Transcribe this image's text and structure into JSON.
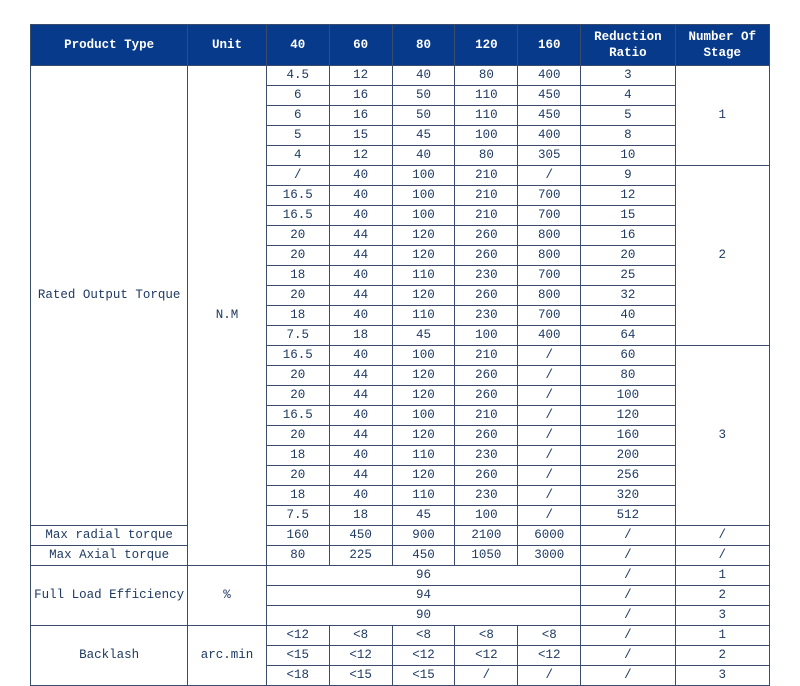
{
  "colors": {
    "header_bg": "#083a8b",
    "header_fg": "#ffffff",
    "border": "#3b4b6b",
    "text": "#1f3a63",
    "bg": "#ffffff"
  },
  "col_widths_pct": [
    20,
    10,
    8,
    8,
    8,
    8,
    8,
    12,
    12
  ],
  "headers": {
    "product_type": "Product Type",
    "unit": "Unit",
    "c40": "40",
    "c60": "60",
    "c80": "80",
    "c120": "120",
    "c160": "160",
    "reduction_ratio": "Reduction\nRatio",
    "num_stage": "Number Of\nStage"
  },
  "sections": {
    "rated_output": {
      "label": "Rated Output Torque",
      "unit": "N.M",
      "stages": [
        {
          "stage": "1",
          "rows": [
            {
              "c40": "4.5",
              "c60": "12",
              "c80": "40",
              "c120": "80",
              "c160": "400",
              "rr": "3"
            },
            {
              "c40": "6",
              "c60": "16",
              "c80": "50",
              "c120": "110",
              "c160": "450",
              "rr": "4"
            },
            {
              "c40": "6",
              "c60": "16",
              "c80": "50",
              "c120": "110",
              "c160": "450",
              "rr": "5"
            },
            {
              "c40": "5",
              "c60": "15",
              "c80": "45",
              "c120": "100",
              "c160": "400",
              "rr": "8"
            },
            {
              "c40": "4",
              "c60": "12",
              "c80": "40",
              "c120": "80",
              "c160": "305",
              "rr": "10"
            }
          ]
        },
        {
          "stage": "2",
          "rows": [
            {
              "c40": "/",
              "c60": "40",
              "c80": "100",
              "c120": "210",
              "c160": "/",
              "rr": "9"
            },
            {
              "c40": "16.5",
              "c60": "40",
              "c80": "100",
              "c120": "210",
              "c160": "700",
              "rr": "12"
            },
            {
              "c40": "16.5",
              "c60": "40",
              "c80": "100",
              "c120": "210",
              "c160": "700",
              "rr": "15"
            },
            {
              "c40": "20",
              "c60": "44",
              "c80": "120",
              "c120": "260",
              "c160": "800",
              "rr": "16"
            },
            {
              "c40": "20",
              "c60": "44",
              "c80": "120",
              "c120": "260",
              "c160": "800",
              "rr": "20"
            },
            {
              "c40": "18",
              "c60": "40",
              "c80": "110",
              "c120": "230",
              "c160": "700",
              "rr": "25"
            },
            {
              "c40": "20",
              "c60": "44",
              "c80": "120",
              "c120": "260",
              "c160": "800",
              "rr": "32"
            },
            {
              "c40": "18",
              "c60": "40",
              "c80": "110",
              "c120": "230",
              "c160": "700",
              "rr": "40"
            },
            {
              "c40": "7.5",
              "c60": "18",
              "c80": "45",
              "c120": "100",
              "c160": "400",
              "rr": "64"
            }
          ]
        },
        {
          "stage": "3",
          "rows": [
            {
              "c40": "16.5",
              "c60": "40",
              "c80": "100",
              "c120": "210",
              "c160": "/",
              "rr": "60"
            },
            {
              "c40": "20",
              "c60": "44",
              "c80": "120",
              "c120": "260",
              "c160": "/",
              "rr": "80"
            },
            {
              "c40": "20",
              "c60": "44",
              "c80": "120",
              "c120": "260",
              "c160": "/",
              "rr": "100"
            },
            {
              "c40": "16.5",
              "c60": "40",
              "c80": "100",
              "c120": "210",
              "c160": "/",
              "rr": "120"
            },
            {
              "c40": "20",
              "c60": "44",
              "c80": "120",
              "c120": "260",
              "c160": "/",
              "rr": "160"
            },
            {
              "c40": "18",
              "c60": "40",
              "c80": "110",
              "c120": "230",
              "c160": "/",
              "rr": "200"
            },
            {
              "c40": "20",
              "c60": "44",
              "c80": "120",
              "c120": "260",
              "c160": "/",
              "rr": "256"
            },
            {
              "c40": "18",
              "c60": "40",
              "c80": "110",
              "c120": "230",
              "c160": "/",
              "rr": "320"
            },
            {
              "c40": "7.5",
              "c60": "18",
              "c80": "45",
              "c120": "100",
              "c160": "/",
              "rr": "512"
            }
          ]
        }
      ]
    },
    "max_radial": {
      "label": "Max radial torque",
      "c40": "160",
      "c60": "450",
      "c80": "900",
      "c120": "2100",
      "c160": "6000",
      "rr": "/",
      "stage": "/"
    },
    "max_axial": {
      "label": "Max Axial torque",
      "c40": "80",
      "c60": "225",
      "c80": "450",
      "c120": "1050",
      "c160": "3000",
      "rr": "/",
      "stage": "/"
    },
    "efficiency": {
      "label": "Full Load Efficiency",
      "unit": "%",
      "rows": [
        {
          "val": "96",
          "rr": "/",
          "stage": "1"
        },
        {
          "val": "94",
          "rr": "/",
          "stage": "2"
        },
        {
          "val": "90",
          "rr": "/",
          "stage": "3"
        }
      ]
    },
    "backlash": {
      "label": "Backlash",
      "unit": "arc.min",
      "rows": [
        {
          "c40": "<12",
          "c60": "<8",
          "c80": "<8",
          "c120": "<8",
          "c160": "<8",
          "rr": "/",
          "stage": "1"
        },
        {
          "c40": "<15",
          "c60": "<12",
          "c80": "<12",
          "c120": "<12",
          "c160": "<12",
          "rr": "/",
          "stage": "2"
        },
        {
          "c40": "<18",
          "c60": "<15",
          "c80": "<15",
          "c120": "/",
          "c160": "/",
          "rr": "/",
          "stage": "3"
        }
      ]
    }
  }
}
